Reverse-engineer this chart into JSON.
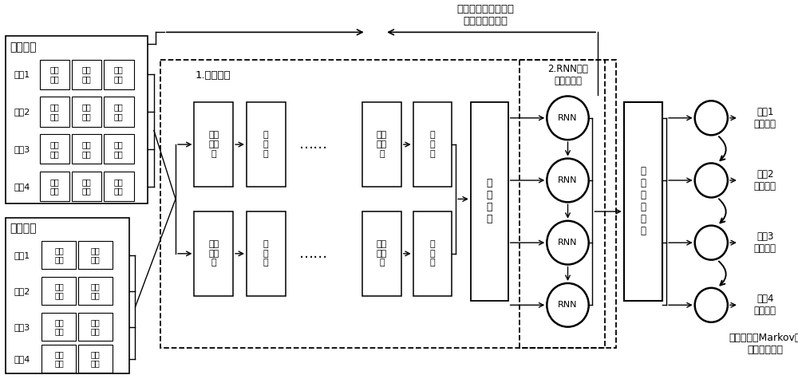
{
  "bg_color": "#ffffff",
  "train_label": "训练阶段",
  "eval_label": "评估阶段",
  "train_segments": [
    "片段1",
    "片段2",
    "片段3",
    "片段4"
  ],
  "eval_segments": [
    "片段1",
    "片段2",
    "片段3",
    "片段4"
  ],
  "feature_label": "1.提取特征",
  "rnn_label": "2.RNN嵌入\n时序关联性",
  "conv2d_texts": [
    "二维\n卷积\n积",
    "二维\n卷积\n积"
  ],
  "conv1d_texts": [
    "一维\n卷积\n积",
    "一维\n卷积\n积"
  ],
  "pool_texts": [
    "池\n化\n层",
    "池\n化\n层",
    "池\n化\n层",
    "池\n化\n层"
  ],
  "feat_seq_label": "特\n征\n序\n列",
  "model_pred_label": "模\n型\n预\n测\n概\n率",
  "rnn_nodes": [
    "RNN",
    "RNN",
    "RNN",
    "RNN"
  ],
  "output_labels": [
    "片段1\n评估结果",
    "片段2\n评估结果",
    "片段3\n评估结果",
    "片段4\n评估结果"
  ],
  "train_arrow_label": "训练阶段：计算损失\n函数，反向传播",
  "eval_bottom_label": "评估阶段：Markov链\n校正预测概率"
}
